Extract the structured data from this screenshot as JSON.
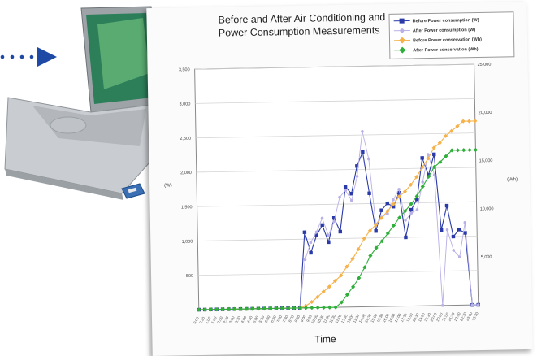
{
  "chart_data": {
    "type": "line",
    "title": "Before and After Air Conditioning and Power Consumption Measurements",
    "xlabel": "Time",
    "y_left_unit": "(W)",
    "y_right_unit": "(Wh)",
    "y_left_ticks": [
      "500",
      "1,000",
      "1,500",
      "2,000",
      "2,500",
      "3,000",
      "3,500"
    ],
    "y_right_ticks": [
      "5,000",
      "10,000",
      "15,000",
      "20,000",
      "25,000"
    ],
    "ylim_left": [
      0,
      3500
    ],
    "ylim_right": [
      0,
      25000
    ],
    "x_ticks": [
      "0:00",
      "0:30",
      "1:00",
      "1:30",
      "2:00",
      "2:30",
      "3:00",
      "3:30",
      "4:00",
      "4:30",
      "5:00",
      "5:30",
      "6:00",
      "6:30",
      "7:00",
      "7:30",
      "8:00",
      "8:30",
      "9:00",
      "9:30",
      "10:00",
      "10:30",
      "11:00",
      "11:30",
      "12:00",
      "12:30",
      "13:00",
      "13:30",
      "14:00",
      "14:30",
      "15:00",
      "15:30",
      "16:00",
      "16:30",
      "17:00",
      "17:30",
      "18:00",
      "18:30",
      "19:00",
      "19:30",
      "20:00",
      "20:30",
      "21:00",
      "21:30",
      "22:00",
      "22:30",
      "23:00",
      "23:30"
    ],
    "grid": true,
    "legend_position": "top-right",
    "series": [
      {
        "name": "Before Power consumption (W)",
        "axis": "left",
        "color": "#2a3aa8",
        "values": [
          0,
          0,
          0,
          0,
          0,
          0,
          0,
          0,
          0,
          0,
          0,
          0,
          0,
          0,
          0,
          0,
          0,
          0,
          1100,
          800,
          1050,
          1200,
          950,
          1300,
          1100,
          1750,
          1650,
          2050,
          2250,
          1650,
          1100,
          1400,
          1500,
          1450,
          1650,
          1000,
          1400,
          1550,
          2150,
          1900,
          2200,
          1100,
          1450,
          1000,
          1100,
          1050,
          0,
          0
        ]
      },
      {
        "name": "After Power consumption (W)",
        "axis": "left",
        "color": "#b8b0e6",
        "values": [
          0,
          0,
          0,
          0,
          0,
          0,
          0,
          0,
          0,
          0,
          0,
          0,
          0,
          0,
          0,
          0,
          0,
          0,
          700,
          950,
          1100,
          1300,
          1050,
          1250,
          1600,
          1700,
          1550,
          1900,
          2550,
          2150,
          1200,
          1300,
          1350,
          1550,
          1700,
          1250,
          1350,
          1400,
          1800,
          2200,
          1900,
          0,
          1100,
          800,
          700,
          1200,
          0,
          0
        ]
      },
      {
        "name": "Before Power conservation (Wh)",
        "axis": "right",
        "color": "#f5b24a",
        "values": [
          0,
          0,
          0,
          0,
          0,
          0,
          0,
          0,
          0,
          0,
          0,
          0,
          0,
          0,
          0,
          0,
          0,
          0,
          200,
          600,
          1100,
          1650,
          2150,
          2750,
          3300,
          4200,
          5000,
          6000,
          7100,
          7900,
          8500,
          9200,
          9900,
          10600,
          11400,
          11900,
          12600,
          13400,
          14400,
          15300,
          16400,
          16900,
          17600,
          18100,
          18600,
          19100,
          19100,
          19100
        ]
      },
      {
        "name": "After Power conservation (Wh)",
        "axis": "right",
        "color": "#2fae3a",
        "values": [
          0,
          0,
          0,
          0,
          0,
          0,
          0,
          0,
          0,
          0,
          0,
          0,
          0,
          0,
          0,
          0,
          0,
          0,
          0,
          0,
          0,
          0,
          0,
          0,
          500,
          1300,
          2100,
          3000,
          4100,
          5300,
          6100,
          6800,
          7600,
          8400,
          9200,
          9900,
          10600,
          11400,
          12400,
          13400,
          14400,
          14900,
          15500,
          16100,
          16100,
          16100,
          16100,
          16100
        ]
      }
    ]
  }
}
